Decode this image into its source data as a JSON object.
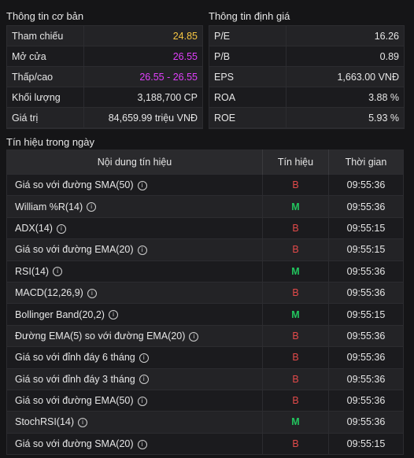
{
  "basic": {
    "title": "Thông tin cơ bản",
    "rows": [
      {
        "label": "Tham chiếu",
        "value": "24.85",
        "color": "#f5c542"
      },
      {
        "label": "Mở cửa",
        "value": "26.55",
        "color": "#e040fb"
      },
      {
        "label": "Thấp/cao",
        "value": "26.55 - 26.55",
        "color": "#e040fb"
      },
      {
        "label": "Khối lượng",
        "value": "3,188,700 CP",
        "color": "#e6e6e6"
      },
      {
        "label": "Giá trị",
        "value": "84,659.99 triệu VNĐ",
        "color": "#e6e6e6"
      }
    ]
  },
  "valuation": {
    "title": "Thông tin định giá",
    "rows": [
      {
        "label": "P/E",
        "value": "16.26"
      },
      {
        "label": "P/B",
        "value": "0.89"
      },
      {
        "label": "EPS",
        "value": "1,663.00 VNĐ"
      },
      {
        "label": "ROA",
        "value": "3.88 %"
      },
      {
        "label": "ROE",
        "value": "5.93 %"
      }
    ]
  },
  "signals": {
    "title": "Tín hiệu trong ngày",
    "headers": {
      "name": "Nội dung tín hiệu",
      "signal": "Tín hiệu",
      "time": "Thời gian"
    },
    "rows": [
      {
        "name": "Giá so với đường SMA(50)",
        "signal": "B",
        "time": "09:55:36"
      },
      {
        "name": "William %R(14)",
        "signal": "M",
        "time": "09:55:36"
      },
      {
        "name": "ADX(14)",
        "signal": "B",
        "time": "09:55:15"
      },
      {
        "name": "Giá so với đường EMA(20)",
        "signal": "B",
        "time": "09:55:15"
      },
      {
        "name": "RSI(14)",
        "signal": "M",
        "time": "09:55:36"
      },
      {
        "name": "MACD(12,26,9)",
        "signal": "B",
        "time": "09:55:36"
      },
      {
        "name": "Bollinger Band(20,2)",
        "signal": "M",
        "time": "09:55:15"
      },
      {
        "name": "Đường EMA(5) so với đường EMA(20)",
        "signal": "B",
        "time": "09:55:36"
      },
      {
        "name": "Giá so với đỉnh đáy 6 tháng",
        "signal": "B",
        "time": "09:55:36"
      },
      {
        "name": "Giá so với đỉnh đáy 3 tháng",
        "signal": "B",
        "time": "09:55:36"
      },
      {
        "name": "Giá so với đường EMA(50)",
        "signal": "B",
        "time": "09:55:36"
      },
      {
        "name": "StochRSI(14)",
        "signal": "M",
        "time": "09:55:36"
      },
      {
        "name": "Giá so với đường SMA(20)",
        "signal": "B",
        "time": "09:55:15"
      }
    ]
  }
}
